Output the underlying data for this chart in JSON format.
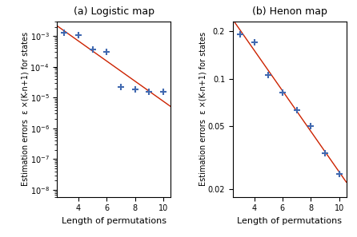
{
  "title_a": "(a) Logistic map",
  "title_b": "(b) Henon map",
  "xlabel": "Length of permutations",
  "ylabel_a": "Estimation errors  ε ×(K-n+1) for states",
  "ylabel_b": "Estimation errors  ε ×(K-n+1) for states",
  "logistic_x": [
    3,
    4,
    5,
    6,
    7,
    8,
    9,
    10
  ],
  "logistic_y": [
    0.00128,
    0.00105,
    0.00036,
    0.0003,
    2.2e-05,
    1.9e-05,
    1.55e-05,
    1.58e-05
  ],
  "henon_x": [
    3,
    4,
    5,
    6,
    7,
    8,
    9,
    10
  ],
  "henon_y": [
    0.19,
    0.17,
    0.106,
    0.082,
    0.063,
    0.05,
    0.034,
    0.025
  ],
  "marker_color": "#4169b0",
  "line_color": "#cc2200",
  "marker": "+",
  "markersize": 6,
  "markeredgewidth": 1.5,
  "linewidth": 1.0,
  "logistic_xlim": [
    2.5,
    10.5
  ],
  "logistic_ylim_low": 6e-09,
  "logistic_ylim_high": 0.003,
  "henon_xlim": [
    2.5,
    10.5
  ],
  "henon_ylim_low": 0.018,
  "henon_ylim_high": 0.23,
  "henon_yticks": [
    0.02,
    0.05,
    0.1,
    0.2
  ],
  "henon_ytick_labels": [
    "0.02",
    "0.05",
    "0.1",
    "0.2"
  ],
  "xticks": [
    4,
    6,
    8,
    10
  ],
  "fontsize_title": 9,
  "fontsize_label": 8,
  "fontsize_ylabel": 7,
  "fontsize_tick": 7
}
